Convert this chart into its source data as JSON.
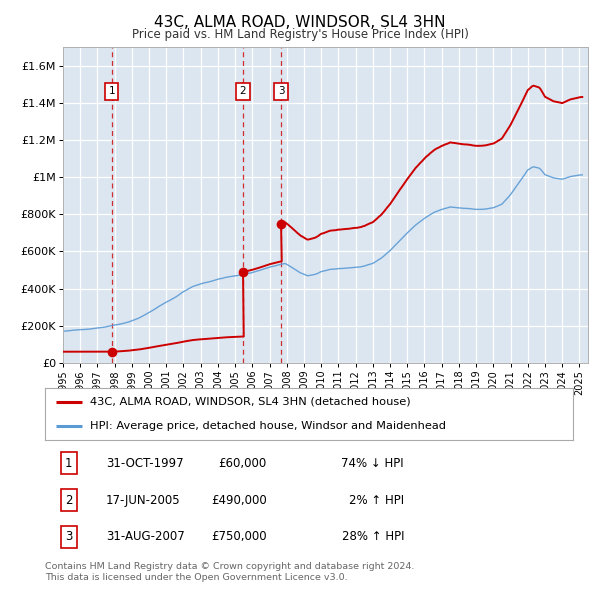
{
  "title": "43C, ALMA ROAD, WINDSOR, SL4 3HN",
  "subtitle": "Price paid vs. HM Land Registry's House Price Index (HPI)",
  "legend_line1": "43C, ALMA ROAD, WINDSOR, SL4 3HN (detached house)",
  "legend_line2": "HPI: Average price, detached house, Windsor and Maidenhead",
  "sale_color": "#cc0000",
  "hpi_color": "#5b9bd5",
  "sale_date_floats": [
    1997.833,
    2005.458,
    2007.667
  ],
  "sale_prices": [
    60000,
    490000,
    750000
  ],
  "table_rows": [
    [
      "1",
      "31-OCT-1997",
      "£60,000",
      "74% ↓ HPI"
    ],
    [
      "2",
      "17-JUN-2005",
      "£490,000",
      "2% ↑ HPI"
    ],
    [
      "3",
      "31-AUG-2007",
      "£750,000",
      "28% ↑ HPI"
    ]
  ],
  "footer": "Contains HM Land Registry data © Crown copyright and database right 2024.\nThis data is licensed under the Open Government Licence v3.0.",
  "plot_bg_color": "#dce6f1",
  "ylim": [
    0,
    1700000
  ],
  "yticks": [
    0,
    200000,
    400000,
    600000,
    800000,
    1000000,
    1200000,
    1400000,
    1600000
  ],
  "ytick_labels": [
    "£0",
    "£200K",
    "£400K",
    "£600K",
    "£800K",
    "£1M",
    "£1.2M",
    "£1.4M",
    "£1.6M"
  ],
  "xmin": 1995.0,
  "xmax": 2025.5,
  "xtick_years": [
    1995,
    1996,
    1997,
    1998,
    1999,
    2000,
    2001,
    2002,
    2003,
    2004,
    2005,
    2006,
    2007,
    2008,
    2009,
    2010,
    2011,
    2012,
    2013,
    2014,
    2015,
    2016,
    2017,
    2018,
    2019,
    2020,
    2021,
    2022,
    2023,
    2024,
    2025
  ]
}
